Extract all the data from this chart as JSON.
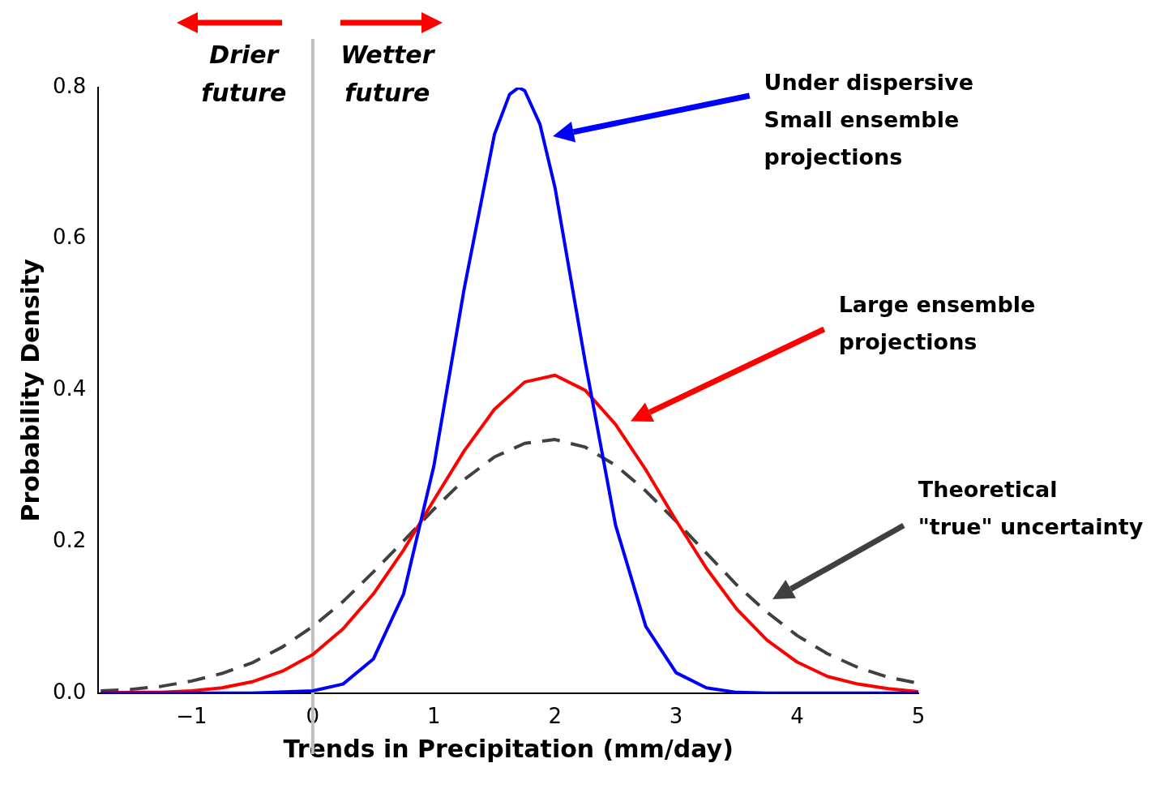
{
  "chart_data": {
    "type": "line",
    "xlabel": "Trends in Precipitation (mm/day)",
    "ylabel": "Probability Density",
    "xlim": [
      -1.77,
      5
    ],
    "ylim": [
      0,
      0.8
    ],
    "xticks": [
      {
        "value": -1,
        "label": "−1"
      },
      0,
      1,
      2,
      3,
      4,
      5
    ],
    "yticks": [
      {
        "value": 0,
        "label": "0.0"
      },
      0.2,
      0.4,
      0.6,
      0.8
    ],
    "grid": false,
    "legend": false,
    "marker": "none",
    "ref_lines": [
      {
        "axis": "x",
        "value": 0,
        "color": "#bfbfbf"
      }
    ],
    "annotations": [
      "Drier\nfuture",
      "Wetter\nfuture",
      "Under dispersive\nSmall ensemble\nprojections",
      "Large ensemble\nprojections",
      "Theoretical\n\"true\" uncertainty"
    ],
    "series": [
      {
        "color": "#0000ff",
        "line_style": "solid",
        "x": [
          -1.75,
          -1,
          -0.5,
          0,
          0.25,
          0.5,
          0.75,
          1,
          1.25,
          1.5,
          1.625,
          1.7,
          1.75,
          1.875,
          2,
          2.25,
          2.5,
          2.75,
          3,
          3.25,
          3.5,
          3.75,
          4,
          5
        ],
        "values": [
          0,
          0,
          0,
          0.003,
          0.012,
          0.045,
          0.131,
          0.3,
          0.534,
          0.738,
          0.791,
          0.8,
          0.796,
          0.752,
          0.668,
          0.437,
          0.222,
          0.088,
          0.027,
          0.007,
          0.001,
          0,
          0,
          0
        ]
      },
      {
        "color": "#ff0000",
        "line_style": "solid",
        "x": [
          -1.75,
          -1.5,
          -1.25,
          -1,
          -0.75,
          -0.5,
          -0.25,
          0,
          0.25,
          0.5,
          0.75,
          1,
          1.25,
          1.5,
          1.75,
          2,
          2.25,
          2.5,
          2.75,
          3,
          3.25,
          3.5,
          3.75,
          4,
          4.25,
          4.5,
          4.75,
          5
        ],
        "values": [
          0,
          0.001,
          0.001,
          0.003,
          0.007,
          0.015,
          0.029,
          0.051,
          0.085,
          0.131,
          0.189,
          0.255,
          0.32,
          0.375,
          0.411,
          0.42,
          0.4,
          0.355,
          0.295,
          0.228,
          0.165,
          0.111,
          0.07,
          0.041,
          0.022,
          0.012,
          0.006,
          0.002
        ]
      },
      {
        "color": "#404040",
        "line_style": "dashed",
        "x": [
          -1.75,
          -1.5,
          -1.25,
          -1,
          -0.75,
          -0.5,
          -0.25,
          0,
          0.25,
          0.5,
          0.75,
          1,
          1.25,
          1.5,
          1.75,
          2,
          2.25,
          2.5,
          2.75,
          3,
          3.25,
          3.5,
          3.75,
          4,
          4.25,
          4.5,
          4.75,
          5
        ],
        "values": [
          0.003,
          0.005,
          0.009,
          0.016,
          0.026,
          0.04,
          0.061,
          0.088,
          0.121,
          0.16,
          0.201,
          0.243,
          0.282,
          0.312,
          0.33,
          0.335,
          0.325,
          0.301,
          0.267,
          0.227,
          0.185,
          0.143,
          0.107,
          0.076,
          0.052,
          0.034,
          0.021,
          0.013
        ]
      }
    ]
  }
}
